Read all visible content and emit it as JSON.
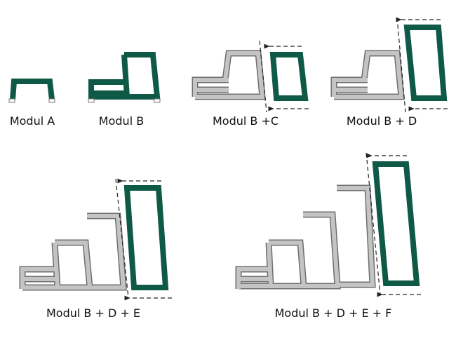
{
  "panels": [
    {
      "label": "Modul A"
    },
    {
      "label": "Modul B"
    },
    {
      "label": "Modul B +C"
    },
    {
      "label": "Modul B + D"
    },
    {
      "label": "Modul B + D + E"
    },
    {
      "label": "Modul B + D + E + F"
    }
  ]
}
